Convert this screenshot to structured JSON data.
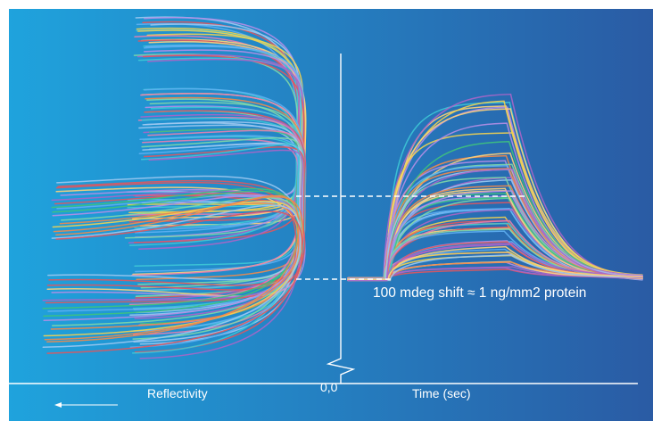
{
  "diagram": {
    "annotation": "100 mdeg shift ≈ 1 ng/mm2 protein",
    "x_axis": {
      "left_label": "Reflectivity",
      "origin_label": "0,0",
      "right_label": "Time (sec)"
    },
    "colors": {
      "background_left": "#1fa3dd",
      "background_right": "#2a5ba4",
      "axis": "#ffffff",
      "curve_palette": [
        "#a866c8",
        "#e0565e",
        "#f3d250",
        "#3fc27d",
        "#3ec8d6",
        "#f08a4b",
        "#9cc8f0",
        "#e87fb0",
        "#7fd7a8",
        "#b58ee6",
        "#ffd27a",
        "#5fb0f2"
      ]
    },
    "icons": {
      "axis_arrow": "left-arrow-icon",
      "axis_break": "zigzag-break-icon"
    }
  }
}
